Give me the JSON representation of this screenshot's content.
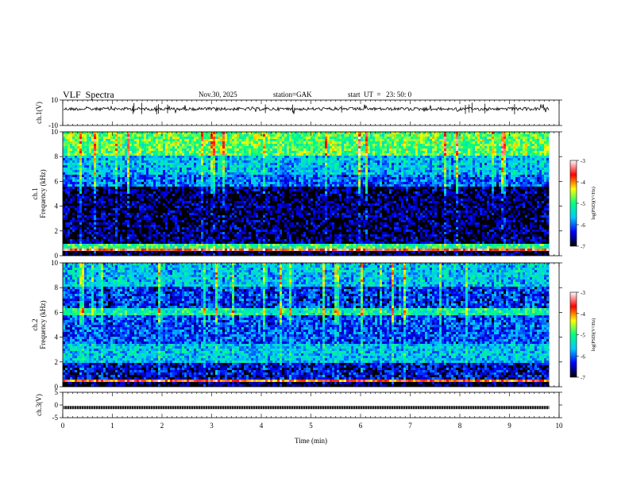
{
  "header": {
    "title": "VLF  Spectra",
    "date": "Nov.30, 2025",
    "station": "station=GAK",
    "start": "start  UT  =   23: 50: 0"
  },
  "chart_data": [
    {
      "type": "line",
      "panel": "ch1-waveform",
      "ylabel": "ch.1(V)",
      "ylim": [
        -10,
        10
      ],
      "y_ticks": [
        "10",
        "-10"
      ],
      "baseline_level": 3,
      "xlim": [
        0,
        10
      ],
      "x_data_extent": [
        0,
        9.8
      ],
      "color": "#000000"
    },
    {
      "type": "heatmap",
      "panel": "ch1-spectrogram",
      "ylabel": "ch.1\nFrequency  (kHz)",
      "ylim": [
        0,
        10
      ],
      "y_ticks": [
        "0",
        "2",
        "4",
        "6",
        "8",
        "10"
      ],
      "xlim": [
        0,
        10
      ],
      "x_data_extent": [
        0,
        9.8
      ],
      "colorbar": {
        "label": "log(PSD)(V²/Hz)",
        "range": [
          -7,
          -3
        ],
        "ticks": [
          "-3",
          "-4",
          "-5",
          "-6",
          "-7"
        ],
        "colors": [
          "#000000",
          "#0000ff",
          "#00c8ff",
          "#00ff80",
          "#ffff00",
          "#ff0000",
          "#ffffff"
        ]
      },
      "bands_log_psd": [
        {
          "from_khz": 0,
          "to_khz": 0.3,
          "level": -6.8
        },
        {
          "from_khz": 0.3,
          "to_khz": 0.5,
          "level": -3.6
        },
        {
          "from_khz": 0.5,
          "to_khz": 1.0,
          "level": -5.0
        },
        {
          "from_khz": 1.0,
          "to_khz": 5.5,
          "level": -6.7
        },
        {
          "from_khz": 5.5,
          "to_khz": 6.5,
          "level": -6.0
        },
        {
          "from_khz": 6.5,
          "to_khz": 8.0,
          "level": -5.6
        },
        {
          "from_khz": 8.0,
          "to_khz": 10.0,
          "level": -4.8
        }
      ]
    },
    {
      "type": "heatmap",
      "panel": "ch2-spectrogram",
      "ylabel": "ch.2\nFrequency  (kHz)",
      "ylim": [
        0,
        10
      ],
      "y_ticks": [
        "0",
        "2",
        "4",
        "6",
        "8",
        "10"
      ],
      "xlim": [
        0,
        10
      ],
      "x_data_extent": [
        0,
        9.8
      ],
      "colorbar": {
        "label": "log(PSD)(V²/Hz)",
        "range": [
          -7,
          -3
        ],
        "ticks": [
          "-3",
          "-4",
          "-5",
          "-6",
          "-7"
        ],
        "colors": [
          "#000000",
          "#0000ff",
          "#00c8ff",
          "#00ff80",
          "#ffff00",
          "#ff0000",
          "#ffffff"
        ]
      },
      "bands_log_psd": [
        {
          "from_khz": 0,
          "to_khz": 0.3,
          "level": -6.8
        },
        {
          "from_khz": 0.3,
          "to_khz": 0.5,
          "level": -3.8
        },
        {
          "from_khz": 0.5,
          "to_khz": 2.0,
          "level": -6.4
        },
        {
          "from_khz": 2.0,
          "to_khz": 3.5,
          "level": -5.6
        },
        {
          "from_khz": 3.5,
          "to_khz": 5.8,
          "level": -6.1
        },
        {
          "from_khz": 5.8,
          "to_khz": 6.4,
          "level": -5.2
        },
        {
          "from_khz": 6.4,
          "to_khz": 8.0,
          "level": -6.2
        },
        {
          "from_khz": 8.0,
          "to_khz": 10.0,
          "level": -5.6
        }
      ]
    },
    {
      "type": "line",
      "panel": "ch3-waveform",
      "ylabel": "ch.3(V)",
      "ylim": [
        -5,
        5
      ],
      "y_ticks": [
        "5",
        "0",
        "-5"
      ],
      "baseline_level": -1,
      "xlim": [
        0,
        10
      ],
      "x_data_extent": [
        0,
        9.8
      ],
      "x_ticks": [
        "0",
        "1",
        "2",
        "3",
        "4",
        "5",
        "6",
        "7",
        "8",
        "9",
        "10"
      ],
      "xlabel": "Time  (min)",
      "color": "#000000"
    }
  ]
}
